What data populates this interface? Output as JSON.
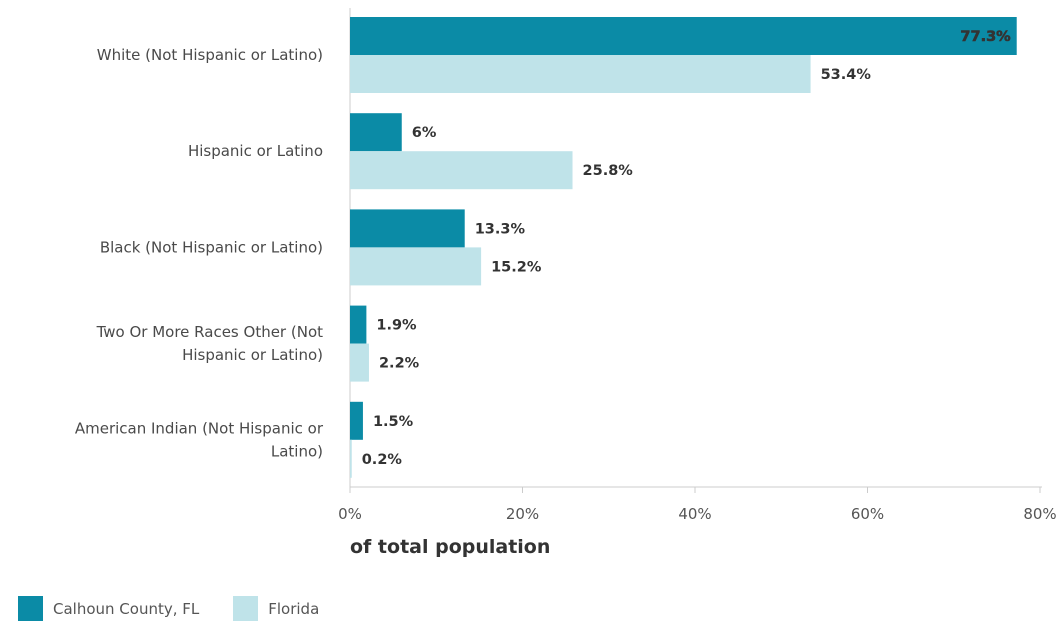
{
  "chart_data": {
    "type": "bar",
    "orientation": "horizontal",
    "categories": [
      [
        "White (Not Hispanic or Latino)"
      ],
      [
        "Hispanic or Latino"
      ],
      [
        "Black (Not Hispanic or Latino)"
      ],
      [
        "Two Or More Races Other (Not",
        "Hispanic or Latino)"
      ],
      [
        "American Indian (Not Hispanic or",
        "Latino)"
      ]
    ],
    "series": [
      {
        "name": "Calhoun County, FL",
        "color": "#0b8ba6",
        "values": [
          77.3,
          6,
          13.3,
          1.9,
          1.5
        ],
        "labels": [
          "77.3%",
          "6%",
          "13.3%",
          "1.9%",
          "1.5%"
        ]
      },
      {
        "name": "Florida",
        "color": "#bfe3e9",
        "values": [
          53.4,
          25.8,
          15.2,
          2.2,
          0.2
        ],
        "labels": [
          "53.4%",
          "25.8%",
          "15.2%",
          "2.2%",
          "0.2%"
        ]
      }
    ],
    "xlim": [
      0,
      80
    ],
    "xticks": [
      "0%",
      "20%",
      "40%",
      "60%",
      "80%"
    ],
    "xlabel": "of total population",
    "grid": false,
    "legend_position": "bottom-left"
  }
}
